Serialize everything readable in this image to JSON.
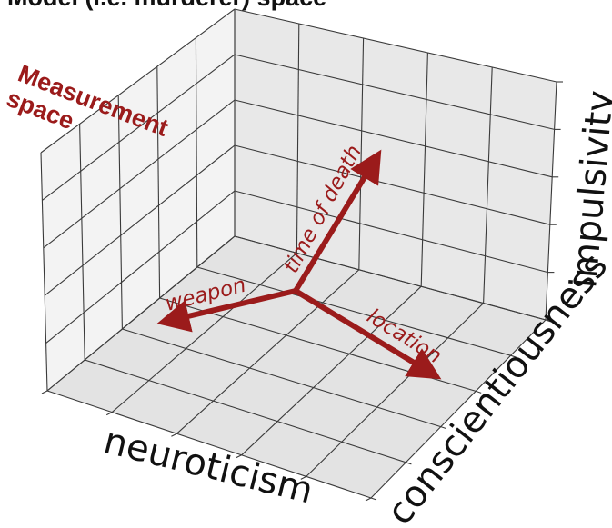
{
  "title": "Model (i.e. murderer) space",
  "measurement_space_label": [
    "Measurement",
    "space"
  ],
  "axes": {
    "x": "neuroticism",
    "y": "conscientiousness",
    "z": "impulsivity"
  },
  "arrows": [
    {
      "label": "weapon"
    },
    {
      "label": "time of death"
    },
    {
      "label": "location"
    }
  ],
  "colors": {
    "accent": "#9b1b1b",
    "pane_light": "#f2f2f2",
    "pane_mid": "#e9e9e9",
    "pane_dark": "#e0e0e0",
    "grid": "#3a3a3a",
    "text": "#111111"
  }
}
